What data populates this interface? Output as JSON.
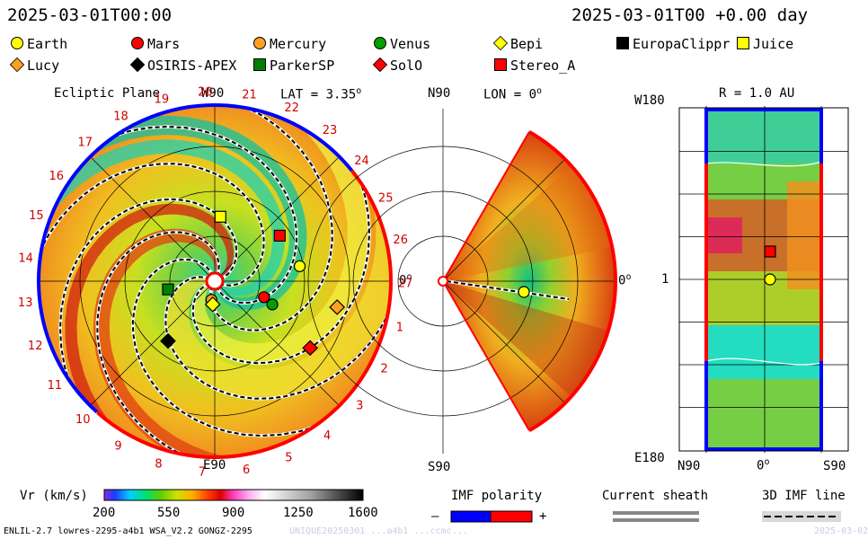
{
  "header": {
    "left_time": "2025-03-01T00:00",
    "right_time": "2025-03-01T00 +0.00 day"
  },
  "legend": [
    {
      "name": "Earth",
      "shape": "circle",
      "color": "#ffff00"
    },
    {
      "name": "Mars",
      "shape": "circle",
      "color": "#ff0000"
    },
    {
      "name": "Mercury",
      "shape": "circle",
      "color": "#ffa020"
    },
    {
      "name": "Venus",
      "shape": "circle",
      "color": "#00a000"
    },
    {
      "name": "Bepi",
      "shape": "diamond",
      "color": "#ffff00"
    },
    {
      "name": "EuropaClippr",
      "shape": "square",
      "color": "#000000"
    },
    {
      "name": "Juice",
      "shape": "square",
      "color": "#ffff00"
    },
    {
      "name": "Lucy",
      "shape": "diamond",
      "color": "#ffa020"
    },
    {
      "name": "OSIRIS-APEX",
      "shape": "diamond",
      "color": "#000000"
    },
    {
      "name": "ParkerSP",
      "shape": "square",
      "color": "#008000"
    },
    {
      "name": "SolO",
      "shape": "diamond",
      "color": "#ff0000"
    },
    {
      "name": "Stereo_A",
      "shape": "square",
      "color": "#ff0000"
    }
  ],
  "ecliptic": {
    "title": "Ecliptic Plane",
    "top_label": "W90",
    "bottom_label": "E90",
    "right_label": "0",
    "lat_label": "LAT = 3.35",
    "lat_unit": "o",
    "ticks": [
      "20",
      "21",
      "22",
      "23",
      "24",
      "25",
      "26",
      "27",
      "1",
      "2",
      "3",
      "4",
      "5",
      "6",
      "7",
      "8",
      "9",
      "10",
      "11",
      "12",
      "13",
      "14",
      "15",
      "16",
      "17",
      "18",
      "19"
    ]
  },
  "meridional": {
    "top_label": "N90",
    "bottom_label": "S90",
    "lon_label": "LON = 0",
    "lon_unit": "o",
    "right_label": "0"
  },
  "map": {
    "title": "R = 1.0 AU",
    "top_left": "W180",
    "mid_left": "1",
    "bottom_left": "E180",
    "bottom_left_lat": "N90",
    "bottom_mid": "0",
    "bottom_right": "S90"
  },
  "colorbar": {
    "title": "Vr (km/s)",
    "ticks": [
      "200",
      "550",
      "900",
      "1250",
      "1600"
    ],
    "min": 200,
    "max": 1600
  },
  "imf": {
    "title": "IMF polarity",
    "minus": "–",
    "plus": "+",
    "colors": {
      "negative": "#0000ff",
      "positive": "#ff0000"
    }
  },
  "sheath": {
    "title": "Current sheath"
  },
  "imfline": {
    "title": "3D IMF line"
  },
  "footer": {
    "model": "ENLIL-2.7 lowres-2295-a4b1 WSA_V2.2 GONGZ-2295",
    "run": "UNIQUE20250301 ...a4b1 ...ccmc...",
    "date": "2025-03-02"
  },
  "chart_data": [
    {
      "type": "heatmap",
      "title": "Ecliptic Plane",
      "quantity": "Vr (km/s)",
      "vmin": 200,
      "vmax": 1600,
      "objects": [
        {
          "name": "Earth",
          "angle_deg": 10,
          "r_au": 1.0
        },
        {
          "name": "Mars",
          "angle_deg": -18,
          "r_au": 0.6
        },
        {
          "name": "Venus",
          "angle_deg": -22,
          "r_au": 0.72
        },
        {
          "name": "Mercury",
          "angle_deg": -100,
          "r_au": 0.22
        },
        {
          "name": "Bepi",
          "angle_deg": -95,
          "r_au": 0.27
        },
        {
          "name": "Juice",
          "angle_deg": 85,
          "r_au": 0.75
        },
        {
          "name": "Stereo_A",
          "angle_deg": 35,
          "r_au": 0.92
        },
        {
          "name": "ParkerSP",
          "angle_deg": -170,
          "r_au": 0.55
        },
        {
          "name": "OSIRIS-APEX",
          "angle_deg": -128,
          "r_au": 0.88
        },
        {
          "name": "Lucy",
          "angle_deg": -12,
          "r_au": 1.45
        },
        {
          "name": "SolO",
          "angle_deg": -35,
          "r_au": 1.35
        }
      ]
    },
    {
      "type": "heatmap",
      "title": "LON = 0",
      "quantity": "Vr (km/s)",
      "objects": [
        {
          "name": "Earth",
          "lat_deg": 0,
          "r_au": 1.0
        }
      ]
    },
    {
      "type": "heatmap",
      "title": "R = 1.0 AU",
      "quantity": "Vr (km/s)",
      "objects": [
        {
          "name": "Earth"
        },
        {
          "name": "Stereo_A"
        }
      ]
    }
  ]
}
